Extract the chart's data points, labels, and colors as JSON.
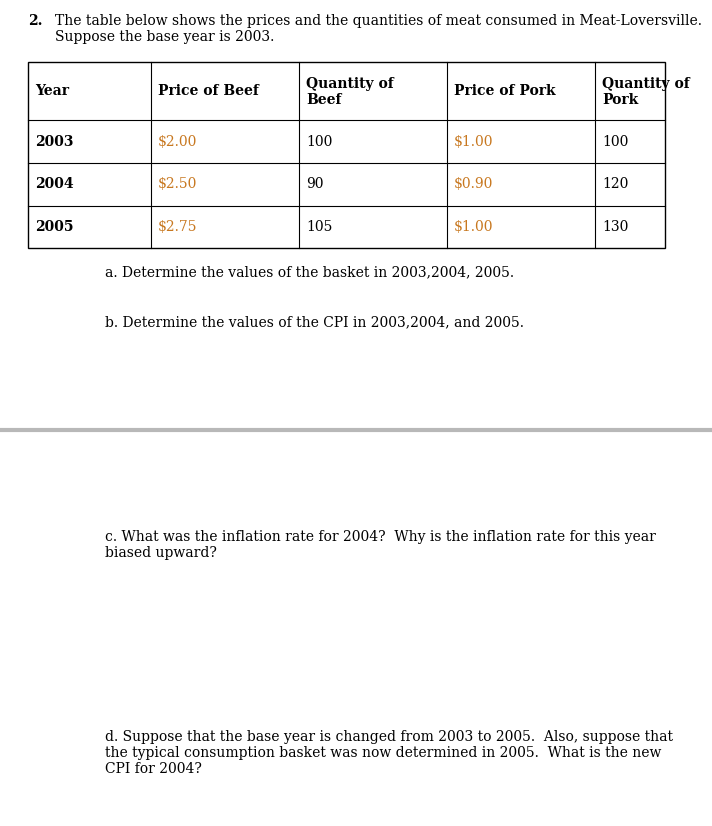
{
  "title_number": "2.",
  "title_line1": "The table below shows the prices and the quantities of meat consumed in Meat-Loversville.",
  "title_line2": "Suppose the base year is 2003.",
  "table_headers": [
    "Year",
    "Price of Beef",
    "Quantity of\nBeef",
    "Price of Pork",
    "Quantity of\nPork"
  ],
  "table_rows": [
    [
      "2003",
      "$2.00",
      "100",
      "$1.00",
      "100"
    ],
    [
      "2004",
      "$2.50",
      "90",
      "$0.90",
      "120"
    ],
    [
      "2005",
      "$2.75",
      "105",
      "$1.00",
      "130"
    ]
  ],
  "question_a": "a. Determine the values of the basket in 2003,2004, 2005.",
  "question_b": "b. Determine the values of the CPI in 2003,2004, and 2005.",
  "question_c_line1": "c. What was the inflation rate for 2004?  Why is the inflation rate for this year",
  "question_c_line2": "biased upward?",
  "question_d_line1": "d. Suppose that the base year is changed from 2003 to 2005.  Also, suppose that",
  "question_d_line2": "the typical consumption basket was now determined in 2005.  What is the new",
  "question_d_line3": "CPI for 2004?",
  "text_color_black": "#000000",
  "text_color_orange": "#c87820",
  "background_color": "#ffffff",
  "separator_color": "#b8b8b8",
  "font_family": "DejaVu Serif"
}
